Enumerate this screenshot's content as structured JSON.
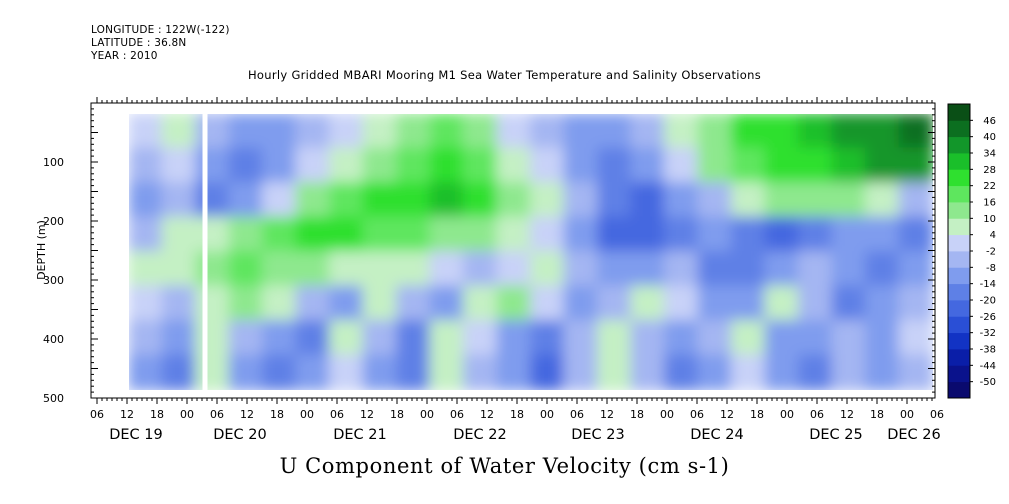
{
  "header": {
    "longitude": "LONGITUDE : 122W(-122)",
    "latitude": "LATITUDE : 36.8N",
    "year": "YEAR : 2010"
  },
  "chart_data": {
    "type": "heatmap",
    "title": "Hourly Gridded MBARI Mooring M1 Sea Water Temperature and Salinity Observations",
    "xlabel": "",
    "ylabel": "DEPTH (m)",
    "colorbar_label": "U Component of Water Velocity (cm s-1)",
    "y_ticks": [
      100,
      200,
      300,
      400,
      500
    ],
    "y_range": [
      20,
      500
    ],
    "y_inverted": true,
    "hour_ticks": [
      "06",
      "12",
      "18",
      "00",
      "06",
      "12",
      "18",
      "00",
      "06",
      "12",
      "18",
      "00",
      "06",
      "12",
      "18",
      "00",
      "06",
      "12",
      "18",
      "00",
      "06",
      "12",
      "18",
      "00",
      "06",
      "12",
      "18",
      "00",
      "06"
    ],
    "day_labels": [
      "DEC 19",
      "DEC 20",
      "DEC 21",
      "DEC 22",
      "DEC 23",
      "DEC 24",
      "DEC 25",
      "DEC 26"
    ],
    "data_start_hour_offset": 12,
    "gap_hour_offset": [
      21,
      22
    ],
    "colorbar_levels": [
      -50,
      -44,
      -38,
      -32,
      -26,
      -20,
      -14,
      -8,
      -2,
      4,
      10,
      16,
      22,
      28,
      34,
      40,
      46
    ],
    "colorbar_colors": [
      "#0a0a6e",
      "#0a128c",
      "#0a1ea8",
      "#1233c4",
      "#2a4fd6",
      "#4468e0",
      "#5e80e6",
      "#7f9cee",
      "#a4b6f2",
      "#c8d2f8",
      "#c4f0c4",
      "#8ee88e",
      "#5ee65e",
      "#2fe02f",
      "#1abf2a",
      "#12962a",
      "#0c6f20",
      "#0a4f16"
    ],
    "grid_rows": [
      [
        -2,
        6,
        -8,
        -12,
        -10,
        -4,
        2,
        8,
        14,
        16,
        10,
        2,
        -4,
        -10,
        -14,
        -8,
        4,
        14,
        22,
        26,
        30,
        34,
        38,
        40
      ],
      [
        -6,
        2,
        -12,
        -16,
        -10,
        0,
        6,
        12,
        18,
        22,
        16,
        8,
        -2,
        -12,
        -18,
        -10,
        2,
        12,
        18,
        22,
        26,
        30,
        34,
        36
      ],
      [
        -10,
        -4,
        -16,
        -10,
        2,
        10,
        16,
        22,
        26,
        28,
        22,
        12,
        4,
        -8,
        -20,
        -22,
        -14,
        -4,
        6,
        12,
        14,
        10,
        4,
        -6
      ],
      [
        -4,
        4,
        6,
        14,
        20,
        24,
        22,
        18,
        16,
        14,
        10,
        6,
        2,
        -10,
        -22,
        -26,
        -20,
        -14,
        -20,
        -24,
        -18,
        -10,
        -12,
        -16
      ],
      [
        4,
        8,
        12,
        16,
        14,
        10,
        6,
        8,
        4,
        -2,
        -8,
        2,
        6,
        -4,
        -14,
        -10,
        -6,
        -16,
        -20,
        -14,
        -8,
        -12,
        -18,
        -14
      ],
      [
        2,
        -6,
        8,
        10,
        4,
        -6,
        -10,
        6,
        -4,
        -12,
        6,
        10,
        -2,
        -10,
        -4,
        6,
        -2,
        -14,
        -10,
        4,
        -8,
        -16,
        -12,
        -6
      ],
      [
        -8,
        -14,
        6,
        -6,
        -12,
        -18,
        4,
        -8,
        -16,
        8,
        2,
        -10,
        -18,
        -6,
        8,
        -4,
        -12,
        -6,
        6,
        -10,
        -14,
        -4,
        -10,
        -2
      ],
      [
        -12,
        -16,
        4,
        -10,
        -18,
        -14,
        2,
        -12,
        -20,
        4,
        -6,
        -14,
        -22,
        -8,
        6,
        -8,
        -16,
        -10,
        2,
        -12,
        -18,
        -6,
        -12,
        -4
      ]
    ]
  }
}
